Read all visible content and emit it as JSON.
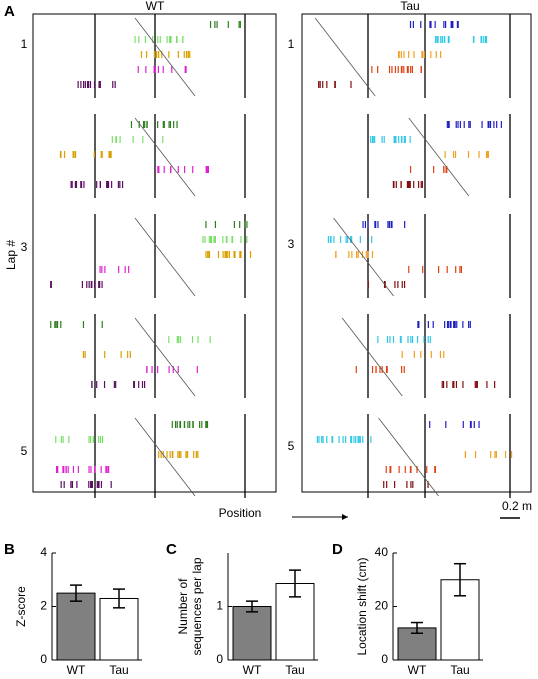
{
  "panel_labels": [
    "A",
    "B",
    "C",
    "D"
  ],
  "raster": {
    "wt_title": "WT",
    "tau_title": "Tau",
    "y_label": "Lap #",
    "lap_labels": [
      "1",
      "3",
      "5"
    ],
    "x_label": "Position",
    "scale_bar": "0.2 m"
  },
  "chart_data": [
    {
      "type": "bar",
      "ylabel": [
        "Z-score"
      ],
      "categories": [
        "WT",
        "Tau"
      ],
      "values": [
        2.5,
        2.3
      ],
      "errors": [
        0.3,
        0.35
      ],
      "colors": [
        "#808080",
        "#ffffff"
      ],
      "ylim": [
        0,
        4
      ],
      "yticks": [
        0,
        2,
        4
      ]
    },
    {
      "type": "bar",
      "ylabel": [
        "Number of",
        "sequences per lap"
      ],
      "categories": [
        "WT",
        "Tau"
      ],
      "values": [
        1.0,
        1.43
      ],
      "errors": [
        0.1,
        0.25
      ],
      "colors": [
        "#808080",
        "#ffffff"
      ],
      "ylim": [
        0,
        2
      ],
      "yticks": [
        0,
        1
      ]
    },
    {
      "type": "bar",
      "ylabel": [
        "Location shift (cm)"
      ],
      "categories": [
        "WT",
        "Tau"
      ],
      "values": [
        12,
        30
      ],
      "errors": [
        2,
        6
      ],
      "colors": [
        "#808080",
        "#ffffff"
      ],
      "ylim": [
        0,
        40
      ],
      "yticks": [
        0,
        20,
        40
      ]
    }
  ]
}
